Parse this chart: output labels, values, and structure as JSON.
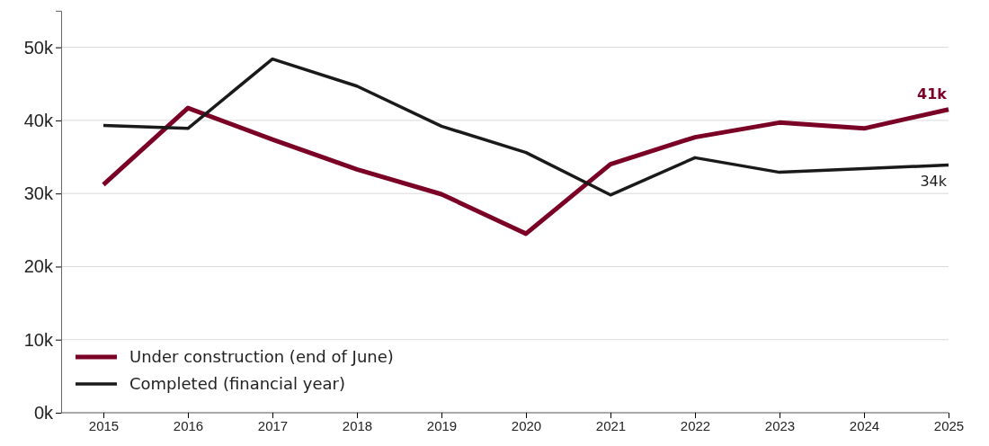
{
  "chart_data": {
    "type": "line",
    "categories": [
      "2015",
      "2016",
      "2017",
      "2018",
      "2019",
      "2020",
      "2021",
      "2022",
      "2023",
      "2024",
      "2025"
    ],
    "series": [
      {
        "name": "Under construction (end of June)",
        "color": "#7a0026",
        "values": [
          31.2,
          41.7,
          37.4,
          33.3,
          29.9,
          24.5,
          34.0,
          37.7,
          39.7,
          38.9,
          41.5
        ]
      },
      {
        "name": "Completed (financial year)",
        "color": "#1a1a1a",
        "values": [
          39.3,
          38.9,
          48.4,
          44.7,
          39.2,
          35.6,
          29.8,
          34.9,
          32.9,
          33.4,
          33.9
        ]
      }
    ],
    "ylim": [
      0,
      55
    ],
    "yticks": [
      {
        "value": 0,
        "label": "0k"
      },
      {
        "value": 10,
        "label": "10k"
      },
      {
        "value": 20,
        "label": "20k"
      },
      {
        "value": 30,
        "label": "30k"
      },
      {
        "value": 40,
        "label": "40k"
      },
      {
        "value": 50,
        "label": "50k"
      }
    ],
    "grid": "y",
    "legend": "bottom left",
    "line_style": "solid",
    "marker": "none",
    "annotations": [
      {
        "text": "41k",
        "x": "2025",
        "y": 41.5
      },
      {
        "text": "34k",
        "x": "2025",
        "y": 33.9
      }
    ]
  }
}
